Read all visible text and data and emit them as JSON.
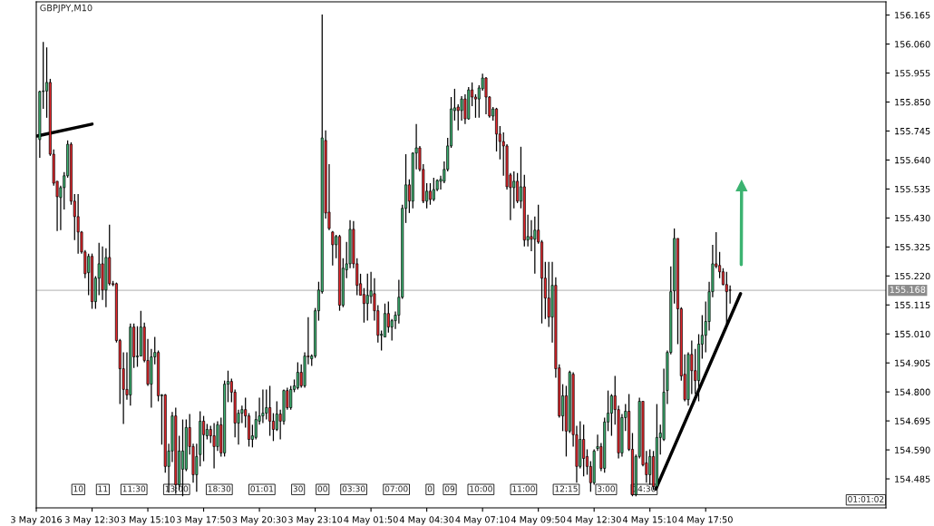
{
  "chart_data": {
    "type": "candlestick",
    "title": "GBPJPY,M10",
    "x": [
      "2016-05-03T10:00",
      "2016-05-03T10:10",
      "2016-05-03T10:20",
      "2016-05-03T10:30",
      "2016-05-03T10:40",
      "2016-05-03T10:50",
      "2016-05-03T11:00",
      "2016-05-03T11:10",
      "2016-05-03T11:20",
      "2016-05-03T11:30",
      "2016-05-03T11:40",
      "2016-05-03T11:50",
      "2016-05-03T12:00",
      "2016-05-03T12:10",
      "2016-05-03T12:20",
      "2016-05-03T12:30",
      "2016-05-03T12:40",
      "2016-05-03T12:50",
      "2016-05-03T13:00",
      "2016-05-03T13:10",
      "2016-05-03T13:20",
      "2016-05-03T13:30",
      "2016-05-03T13:40",
      "2016-05-03T13:50",
      "2016-05-03T14:00",
      "2016-05-03T14:10",
      "2016-05-03T14:20",
      "2016-05-03T14:30",
      "2016-05-03T14:40",
      "2016-05-03T14:50",
      "2016-05-03T15:00",
      "2016-05-03T15:10",
      "2016-05-03T15:20",
      "2016-05-03T15:30",
      "2016-05-03T15:40",
      "2016-05-03T15:50",
      "2016-05-03T16:00",
      "2016-05-03T16:10",
      "2016-05-03T16:20",
      "2016-05-03T16:30",
      "2016-05-03T16:40",
      "2016-05-03T16:50",
      "2016-05-03T17:00",
      "2016-05-03T17:10",
      "2016-05-03T17:20",
      "2016-05-03T17:30",
      "2016-05-03T17:40",
      "2016-05-03T17:50",
      "2016-05-03T18:00",
      "2016-05-03T18:10",
      "2016-05-03T18:20",
      "2016-05-03T18:30",
      "2016-05-03T18:40",
      "2016-05-03T18:50",
      "2016-05-03T19:00",
      "2016-05-03T19:10",
      "2016-05-03T19:20",
      "2016-05-03T19:30",
      "2016-05-03T19:40",
      "2016-05-03T19:50",
      "2016-05-03T20:00",
      "2016-05-03T20:10",
      "2016-05-03T20:20",
      "2016-05-03T20:30",
      "2016-05-03T20:40",
      "2016-05-03T20:50",
      "2016-05-03T21:00",
      "2016-05-03T21:10",
      "2016-05-03T21:20",
      "2016-05-03T21:30",
      "2016-05-03T21:40",
      "2016-05-03T21:50",
      "2016-05-03T22:00",
      "2016-05-03T22:10",
      "2016-05-03T22:20",
      "2016-05-03T22:30",
      "2016-05-03T22:40",
      "2016-05-03T22:50",
      "2016-05-03T23:00",
      "2016-05-03T23:10",
      "2016-05-03T23:20",
      "2016-05-03T23:30",
      "2016-05-03T23:40",
      "2016-05-03T23:50",
      "2016-05-04T00:00",
      "2016-05-04T00:10",
      "2016-05-04T00:20",
      "2016-05-04T00:30",
      "2016-05-04T00:40",
      "2016-05-04T00:50",
      "2016-05-04T01:00",
      "2016-05-04T01:10",
      "2016-05-04T01:20",
      "2016-05-04T01:30",
      "2016-05-04T01:40",
      "2016-05-04T01:50",
      "2016-05-04T02:00",
      "2016-05-04T02:10",
      "2016-05-04T02:20",
      "2016-05-04T02:30",
      "2016-05-04T02:40",
      "2016-05-04T02:50",
      "2016-05-04T03:00",
      "2016-05-04T03:10",
      "2016-05-04T03:20",
      "2016-05-04T03:30",
      "2016-05-04T03:40",
      "2016-05-04T03:50",
      "2016-05-04T04:00",
      "2016-05-04T04:10",
      "2016-05-04T04:20",
      "2016-05-04T04:30",
      "2016-05-04T04:40",
      "2016-05-04T04:50",
      "2016-05-04T05:00",
      "2016-05-04T05:10",
      "2016-05-04T05:20",
      "2016-05-04T05:30",
      "2016-05-04T05:40",
      "2016-05-04T05:50",
      "2016-05-04T06:00",
      "2016-05-04T06:10",
      "2016-05-04T06:20",
      "2016-05-04T06:30",
      "2016-05-04T06:40",
      "2016-05-04T06:50",
      "2016-05-04T07:00",
      "2016-05-04T07:10",
      "2016-05-04T07:20",
      "2016-05-04T07:30",
      "2016-05-04T07:40",
      "2016-05-04T07:50",
      "2016-05-04T08:00",
      "2016-05-04T08:10",
      "2016-05-04T08:20",
      "2016-05-04T08:30",
      "2016-05-04T08:40",
      "2016-05-04T08:50",
      "2016-05-04T09:00",
      "2016-05-04T09:10",
      "2016-05-04T09:20",
      "2016-05-04T09:30",
      "2016-05-04T09:40",
      "2016-05-04T09:50",
      "2016-05-04T10:00",
      "2016-05-04T10:10",
      "2016-05-04T10:20",
      "2016-05-04T10:30",
      "2016-05-04T10:40",
      "2016-05-04T10:50",
      "2016-05-04T11:00",
      "2016-05-04T11:10",
      "2016-05-04T11:20",
      "2016-05-04T11:30",
      "2016-05-04T11:40",
      "2016-05-04T11:50",
      "2016-05-04T12:00",
      "2016-05-04T12:10",
      "2016-05-04T12:20",
      "2016-05-04T12:30",
      "2016-05-04T12:40",
      "2016-05-04T12:50",
      "2016-05-04T13:00",
      "2016-05-04T13:10",
      "2016-05-04T13:20",
      "2016-05-04T13:30",
      "2016-05-04T13:40",
      "2016-05-04T13:50",
      "2016-05-04T14:00",
      "2016-05-04T14:10",
      "2016-05-04T14:20",
      "2016-05-04T14:30",
      "2016-05-04T14:40",
      "2016-05-04T14:50",
      "2016-05-04T15:00",
      "2016-05-04T15:10",
      "2016-05-04T15:20",
      "2016-05-04T15:30",
      "2016-05-04T15:40",
      "2016-05-04T15:50",
      "2016-05-04T16:00",
      "2016-05-04T16:10",
      "2016-05-04T16:20",
      "2016-05-04T16:30",
      "2016-05-04T16:40",
      "2016-05-04T16:50",
      "2016-05-04T17:00",
      "2016-05-04T17:10",
      "2016-05-04T17:20",
      "2016-05-04T17:30",
      "2016-05-04T17:40",
      "2016-05-04T17:50",
      "2016-05-04T18:00",
      "2016-05-04T18:10",
      "2016-05-04T18:20",
      "2016-05-04T18:30",
      "2016-05-04T18:40",
      "2016-05-04T18:50",
      "2016-05-04T19:00"
    ],
    "ohlc": [
      [
        155.714,
        155.891,
        155.648,
        155.888
      ],
      [
        155.888,
        156.068,
        155.825,
        155.89
      ],
      [
        155.89,
        156.048,
        155.793,
        155.921
      ],
      [
        155.921,
        155.934,
        155.655,
        155.661
      ],
      [
        155.661,
        155.678,
        155.547,
        155.556
      ],
      [
        155.563,
        155.563,
        155.383,
        155.507
      ],
      [
        155.504,
        155.547,
        155.386,
        155.54
      ],
      [
        155.54,
        155.596,
        155.461,
        155.583
      ],
      [
        155.583,
        155.711,
        155.576,
        155.697
      ],
      [
        155.697,
        155.704,
        155.478,
        155.491
      ],
      [
        155.491,
        155.517,
        155.35,
        155.435
      ],
      [
        155.435,
        155.517,
        155.301,
        155.379
      ],
      [
        155.379,
        155.383,
        155.301,
        155.307
      ],
      [
        155.307,
        155.314,
        155.212,
        155.228
      ],
      [
        155.232,
        155.301,
        155.15,
        155.291
      ],
      [
        155.291,
        155.301,
        155.101,
        155.127
      ],
      [
        155.127,
        155.219,
        155.101,
        155.212
      ],
      [
        155.212,
        155.34,
        155.15,
        155.264
      ],
      [
        155.264,
        155.327,
        155.133,
        155.169
      ],
      [
        155.169,
        155.32,
        155.107,
        155.287
      ],
      [
        155.287,
        155.406,
        155.186,
        155.192
      ],
      [
        155.192,
        155.202,
        155.183,
        155.189
      ],
      [
        155.192,
        155.196,
        154.979,
        154.986
      ],
      [
        154.986,
        154.992,
        154.756,
        154.884
      ],
      [
        154.884,
        154.943,
        154.684,
        154.809
      ],
      [
        154.809,
        154.943,
        154.772,
        154.789
      ],
      [
        154.789,
        155.048,
        154.75,
        155.035
      ],
      [
        155.035,
        155.048,
        154.887,
        154.927
      ],
      [
        154.927,
        155.038,
        154.891,
        154.93
      ],
      [
        154.93,
        155.094,
        154.93,
        155.035
      ],
      [
        155.035,
        155.051,
        154.907,
        154.914
      ],
      [
        154.914,
        154.992,
        154.822,
        154.828
      ],
      [
        154.828,
        154.956,
        154.743,
        154.927
      ],
      [
        154.927,
        154.999,
        154.9,
        154.943
      ],
      [
        154.943,
        154.95,
        154.766,
        154.786
      ],
      [
        154.786,
        154.792,
        154.609,
        154.789
      ],
      [
        154.789,
        154.792,
        154.507,
        154.53
      ],
      [
        154.53,
        154.612,
        154.435,
        154.586
      ],
      [
        154.586,
        154.727,
        154.546,
        154.713
      ],
      [
        154.713,
        154.743,
        154.431,
        154.464
      ],
      [
        154.464,
        154.641,
        154.445,
        154.586
      ],
      [
        154.52,
        154.7,
        154.422,
        154.586
      ],
      [
        154.52,
        154.7,
        154.513,
        154.671
      ],
      [
        154.671,
        154.72,
        154.573,
        154.602
      ],
      [
        154.602,
        154.612,
        154.471,
        154.5
      ],
      [
        154.5,
        154.612,
        154.438,
        154.566
      ],
      [
        154.573,
        154.73,
        154.53,
        154.694
      ],
      [
        154.694,
        154.713,
        154.549,
        154.645
      ],
      [
        154.641,
        154.684,
        154.628,
        154.664
      ],
      [
        154.664,
        154.677,
        154.615,
        154.641
      ],
      [
        154.641,
        154.687,
        154.523,
        154.602
      ],
      [
        154.602,
        154.694,
        154.586,
        154.681
      ],
      [
        154.681,
        154.707,
        154.566,
        154.579
      ],
      [
        154.579,
        154.841,
        154.566,
        154.828
      ],
      [
        154.828,
        154.877,
        154.763,
        154.838
      ],
      [
        154.838,
        154.848,
        154.763,
        154.799
      ],
      [
        154.799,
        154.809,
        154.635,
        154.687
      ],
      [
        154.687,
        154.736,
        154.609,
        154.723
      ],
      [
        154.723,
        154.75,
        154.687,
        154.736
      ],
      [
        154.736,
        154.779,
        154.671,
        154.713
      ],
      [
        154.713,
        154.723,
        154.602,
        154.628
      ],
      [
        154.628,
        154.681,
        154.599,
        154.641
      ],
      [
        154.635,
        154.73,
        154.628,
        154.7
      ],
      [
        154.694,
        154.779,
        154.681,
        154.713
      ],
      [
        154.713,
        154.809,
        154.687,
        154.723
      ],
      [
        154.723,
        154.809,
        154.7,
        154.743
      ],
      [
        154.743,
        154.822,
        154.641,
        154.694
      ],
      [
        154.694,
        154.723,
        154.622,
        154.664
      ],
      [
        154.664,
        154.766,
        154.658,
        154.72
      ],
      [
        154.72,
        154.736,
        154.628,
        154.694
      ],
      [
        154.694,
        154.809,
        154.681,
        154.805
      ],
      [
        154.805,
        154.815,
        154.736,
        154.743
      ],
      [
        154.743,
        154.822,
        154.736,
        154.809
      ],
      [
        154.809,
        154.845,
        154.799,
        154.822
      ],
      [
        154.815,
        154.907,
        154.809,
        154.871
      ],
      [
        154.871,
        154.9,
        154.815,
        154.822
      ],
      [
        154.822,
        154.943,
        154.815,
        154.93
      ],
      [
        154.93,
        155.071,
        154.9,
        154.927
      ],
      [
        154.92,
        154.936,
        154.894,
        154.93
      ],
      [
        154.93,
        155.104,
        154.923,
        155.094
      ],
      [
        155.094,
        155.199,
        155.058,
        155.169
      ],
      [
        155.163,
        156.167,
        155.156,
        155.72
      ],
      [
        155.711,
        155.747,
        155.428,
        155.448
      ],
      [
        155.451,
        155.625,
        155.386,
        155.392
      ],
      [
        155.379,
        155.383,
        155.258,
        155.333
      ],
      [
        155.333,
        155.369,
        155.284,
        155.363
      ],
      [
        155.363,
        155.369,
        155.094,
        155.114
      ],
      [
        155.114,
        155.284,
        155.107,
        155.248
      ],
      [
        155.242,
        155.343,
        155.212,
        155.264
      ],
      [
        155.264,
        155.422,
        155.248,
        155.389
      ],
      [
        155.389,
        155.419,
        155.248,
        155.264
      ],
      [
        155.264,
        155.284,
        155.15,
        155.186
      ],
      [
        155.192,
        155.228,
        155.15,
        155.15
      ],
      [
        155.153,
        155.176,
        155.051,
        155.12
      ],
      [
        155.12,
        155.228,
        155.058,
        155.15
      ],
      [
        155.146,
        155.235,
        155.12,
        155.166
      ],
      [
        155.156,
        155.212,
        155.058,
        155.094
      ],
      [
        155.094,
        155.114,
        154.979,
        155.005
      ],
      [
        155.005,
        155.022,
        154.95,
        155.009
      ],
      [
        154.999,
        155.12,
        154.999,
        155.084
      ],
      [
        155.084,
        155.127,
        155.015,
        155.035
      ],
      [
        155.035,
        155.064,
        154.986,
        155.058
      ],
      [
        155.058,
        155.091,
        155.028,
        155.078
      ],
      [
        155.078,
        155.206,
        155.048,
        155.143
      ],
      [
        155.143,
        155.478,
        155.137,
        155.465
      ],
      [
        155.465,
        155.661,
        155.412,
        155.55
      ],
      [
        155.55,
        155.57,
        155.448,
        155.491
      ],
      [
        155.491,
        155.668,
        155.465,
        155.665
      ],
      [
        155.665,
        155.77,
        155.606,
        155.684
      ],
      [
        155.684,
        155.691,
        155.599,
        155.606
      ],
      [
        155.606,
        155.625,
        155.484,
        155.491
      ],
      [
        155.491,
        155.556,
        155.465,
        155.527
      ],
      [
        155.527,
        155.556,
        155.478,
        155.497
      ],
      [
        155.497,
        155.576,
        155.491,
        155.533
      ],
      [
        155.533,
        155.57,
        155.527,
        155.566
      ],
      [
        155.563,
        155.583,
        155.533,
        155.57
      ],
      [
        155.563,
        155.635,
        155.556,
        155.606
      ],
      [
        155.606,
        155.72,
        155.599,
        155.691
      ],
      [
        155.691,
        155.868,
        155.684,
        155.825
      ],
      [
        155.819,
        155.898,
        155.783,
        155.829
      ],
      [
        155.832,
        155.842,
        155.747,
        155.819
      ],
      [
        155.819,
        155.871,
        155.783,
        155.861
      ],
      [
        155.861,
        155.878,
        155.77,
        155.789
      ],
      [
        155.789,
        155.904,
        155.786,
        155.894
      ],
      [
        155.894,
        155.921,
        155.835,
        155.868
      ],
      [
        155.868,
        155.878,
        155.793,
        155.861
      ],
      [
        155.861,
        155.911,
        155.793,
        155.901
      ],
      [
        155.898,
        155.953,
        155.891,
        155.937
      ],
      [
        155.937,
        155.94,
        155.806,
        155.868
      ],
      [
        155.868,
        155.871,
        155.793,
        155.799
      ],
      [
        155.799,
        155.832,
        155.783,
        155.825
      ],
      [
        155.825,
        155.829,
        155.671,
        155.734
      ],
      [
        155.734,
        155.763,
        155.642,
        155.707
      ],
      [
        155.707,
        155.74,
        155.583,
        155.691
      ],
      [
        155.691,
        155.697,
        155.533,
        155.543
      ],
      [
        155.586,
        155.593,
        155.422,
        155.54
      ],
      [
        155.54,
        155.599,
        155.465,
        155.563
      ],
      [
        155.563,
        155.593,
        155.484,
        155.491
      ],
      [
        155.491,
        155.688,
        155.465,
        155.543
      ],
      [
        155.543,
        155.586,
        155.327,
        155.35
      ],
      [
        155.35,
        155.442,
        155.327,
        155.363
      ],
      [
        155.363,
        155.422,
        155.31,
        155.353
      ],
      [
        155.353,
        155.435,
        155.228,
        155.386
      ],
      [
        155.386,
        155.478,
        155.337,
        155.343
      ],
      [
        155.343,
        155.35,
        155.048,
        155.212
      ],
      [
        155.212,
        155.271,
        155.064,
        155.14
      ],
      [
        155.14,
        155.271,
        155.035,
        155.071
      ],
      [
        155.071,
        155.271,
        154.979,
        155.186
      ],
      [
        155.186,
        155.215,
        154.851,
        154.884
      ],
      [
        154.887,
        154.9,
        154.707,
        154.713
      ],
      [
        154.713,
        154.828,
        154.658,
        154.786
      ],
      [
        154.786,
        154.822,
        154.566,
        154.658
      ],
      [
        154.658,
        154.877,
        154.651,
        154.871
      ],
      [
        154.864,
        154.871,
        154.602,
        154.645
      ],
      [
        154.645,
        154.677,
        154.471,
        154.53
      ],
      [
        154.53,
        154.694,
        154.523,
        154.628
      ],
      [
        154.628,
        154.681,
        154.494,
        154.559
      ],
      [
        154.566,
        154.592,
        154.5,
        154.53
      ],
      [
        154.53,
        154.549,
        154.438,
        154.471
      ],
      [
        154.471,
        154.592,
        154.464,
        154.586
      ],
      [
        154.595,
        154.645,
        154.586,
        154.602
      ],
      [
        154.602,
        154.615,
        154.513,
        154.523
      ],
      [
        154.523,
        154.707,
        154.507,
        154.691
      ],
      [
        154.691,
        154.805,
        154.658,
        154.723
      ],
      [
        154.723,
        154.792,
        154.641,
        154.786
      ],
      [
        154.786,
        154.858,
        154.681,
        154.736
      ],
      [
        154.736,
        154.75,
        154.559,
        154.579
      ],
      [
        154.579,
        154.72,
        154.566,
        154.707
      ],
      [
        154.707,
        154.756,
        154.658,
        154.73
      ],
      [
        154.73,
        154.792,
        154.586,
        154.592
      ],
      [
        154.592,
        154.651,
        154.422,
        154.428
      ],
      [
        154.428,
        154.573,
        154.422,
        154.566
      ],
      [
        154.566,
        154.779,
        154.559,
        154.766
      ],
      [
        154.766,
        154.766,
        154.53,
        154.536
      ],
      [
        154.543,
        154.586,
        154.471,
        154.5
      ],
      [
        154.5,
        154.592,
        154.464,
        154.566
      ],
      [
        154.566,
        154.586,
        154.445,
        154.458
      ],
      [
        154.458,
        154.756,
        154.445,
        154.635
      ],
      [
        154.635,
        154.681,
        154.573,
        154.651
      ],
      [
        154.628,
        154.884,
        154.622,
        154.799
      ],
      [
        154.805,
        154.95,
        154.756,
        154.943
      ],
      [
        154.943,
        155.255,
        154.936,
        155.163
      ],
      [
        155.166,
        155.392,
        155.12,
        155.356
      ],
      [
        155.356,
        155.356,
        154.973,
        155.101
      ],
      [
        155.101,
        155.107,
        154.841,
        154.858
      ],
      [
        154.864,
        154.936,
        154.766,
        154.772
      ],
      [
        154.772,
        154.943,
        154.75,
        154.936
      ],
      [
        154.936,
        154.986,
        154.792,
        154.877
      ],
      [
        154.877,
        154.956,
        154.792,
        154.841
      ],
      [
        154.841,
        155.009,
        154.766,
        154.973
      ],
      [
        154.973,
        155.078,
        154.92,
        155.005
      ],
      [
        155.005,
        155.127,
        154.943,
        155.055
      ],
      [
        155.055,
        155.199,
        155.022,
        155.163
      ],
      [
        155.163,
        155.333,
        155.143,
        155.264
      ],
      [
        155.264,
        155.379,
        155.248,
        155.255
      ],
      [
        155.258,
        155.307,
        155.212,
        155.235
      ],
      [
        155.235,
        155.248,
        155.186,
        155.189
      ],
      [
        155.189,
        155.235,
        155.048,
        155.163
      ],
      [
        155.169,
        155.186,
        155.12,
        155.168
      ]
    ],
    "series": [
      {
        "type": "line",
        "color": "#000000",
        "x": [
          "2016-05-03T09:52",
          "2016-05-03T12:30"
        ],
        "values": [
          155.727,
          155.77
        ]
      },
      {
        "type": "line",
        "color": "#000000",
        "x": [
          "2016-05-04T15:27",
          "2016-05-04T19:30"
        ],
        "values": [
          154.448,
          155.156
        ]
      },
      {
        "type": "line",
        "color": "#3cb371",
        "marker": "triangle",
        "x": [
          "2016-05-04T19:32",
          "2016-05-04T19:33"
        ],
        "values": [
          155.261,
          155.547
        ]
      }
    ],
    "ref_lines": [
      {
        "axis": "y",
        "value": 155.168,
        "label": "155.168",
        "color": "#c0c0c0"
      }
    ],
    "annotations": [
      "10",
      "11",
      "11:30",
      "13:00",
      "18:30",
      "01:01",
      "30",
      "00",
      "03:30",
      "07:00",
      "0",
      "09",
      "10:00",
      "11:00",
      "12:15",
      "3:00",
      "14:30",
      "01:01:02"
    ],
    "xlim": [
      "2016-05-03T09:50",
      "2016-05-05T02:27"
    ],
    "xticks": [
      {
        "value": "2016-05-03T09:50",
        "label": "3 May 2016"
      },
      {
        "value": "2016-05-03T12:30",
        "label": "3 May 12:30"
      },
      {
        "value": "2016-05-03T15:10",
        "label": "3 May 15:10"
      },
      {
        "value": "2016-05-03T17:50",
        "label": "3 May 17:50"
      },
      {
        "value": "2016-05-03T20:30",
        "label": "3 May 20:30"
      },
      {
        "value": "2016-05-03T23:10",
        "label": "3 May 23:10"
      },
      {
        "value": "2016-05-04T01:50",
        "label": "4 May 01:50"
      },
      {
        "value": "2016-05-04T04:30",
        "label": "4 May 04:30"
      },
      {
        "value": "2016-05-04T07:10",
        "label": "4 May 07:10"
      },
      {
        "value": "2016-05-04T09:50",
        "label": "4 May 09:50"
      },
      {
        "value": "2016-05-04T12:30",
        "label": "4 May 12:30"
      },
      {
        "value": "2016-05-04T15:10",
        "label": "4 May 15:10"
      },
      {
        "value": "2016-05-04T17:50",
        "label": "4 May 17:50"
      }
    ],
    "ylim": [
      154.38,
      156.213
    ],
    "yticks": [
      154.485,
      {
        "value": 154.59,
        "label": "154.590"
      },
      154.695,
      {
        "value": 154.8,
        "label": "154.800"
      },
      154.905,
      {
        "value": 155.01,
        "label": "155.010"
      },
      155.115,
      {
        "value": 155.22,
        "label": "155.220"
      },
      155.325,
      {
        "value": 155.43,
        "label": "155.430"
      },
      155.535,
      {
        "value": 155.64,
        "label": "155.640"
      },
      155.745,
      {
        "value": 155.85,
        "label": "155.850"
      },
      155.955,
      {
        "value": 156.06,
        "label": "156.060"
      },
      156.165
    ]
  }
}
